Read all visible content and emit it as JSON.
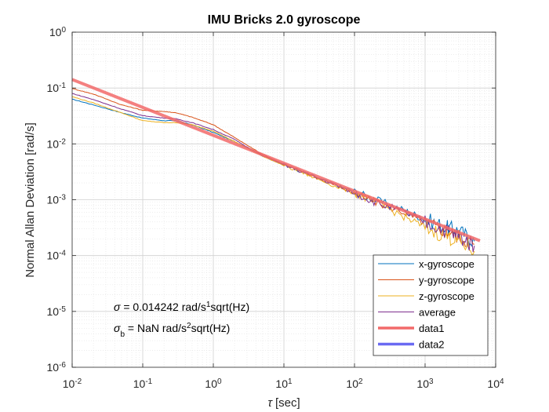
{
  "chart_data": {
    "type": "line",
    "title": "IMU Bricks 2.0 gyroscope",
    "xlabel_symbol": "τ",
    "xlabel_unit": "[sec]",
    "ylabel": "Normal Allan Deviation [rad/s]",
    "xscale": "log",
    "yscale": "log",
    "xlim": [
      0.01,
      10000
    ],
    "ylim": [
      1e-06,
      1
    ],
    "grid": "on (major and minor)",
    "legend_position": "bottom-right",
    "x_ticks": [
      {
        "value": 0.01,
        "base": "10",
        "exp": "-2"
      },
      {
        "value": 0.1,
        "base": "10",
        "exp": "-1"
      },
      {
        "value": 1,
        "base": "10",
        "exp": "0"
      },
      {
        "value": 10,
        "base": "10",
        "exp": "1"
      },
      {
        "value": 100,
        "base": "10",
        "exp": "2"
      },
      {
        "value": 1000,
        "base": "10",
        "exp": "3"
      },
      {
        "value": 10000,
        "base": "10",
        "exp": "4"
      }
    ],
    "y_ticks": [
      {
        "value": 1e-06,
        "base": "10",
        "exp": "-6"
      },
      {
        "value": 1e-05,
        "base": "10",
        "exp": "-5"
      },
      {
        "value": 0.0001,
        "base": "10",
        "exp": "-4"
      },
      {
        "value": 0.001,
        "base": "10",
        "exp": "-3"
      },
      {
        "value": 0.01,
        "base": "10",
        "exp": "-2"
      },
      {
        "value": 0.1,
        "base": "10",
        "exp": "-1"
      },
      {
        "value": 1,
        "base": "10",
        "exp": "0"
      }
    ],
    "series": [
      {
        "name": "x-gyroscope",
        "color": "#0072BD",
        "width": 1,
        "x": [
          0.01,
          0.02,
          0.05,
          0.1,
          0.2,
          0.3,
          0.5,
          1,
          2,
          3,
          5,
          10,
          20,
          50,
          100,
          200,
          500,
          1000,
          2000,
          3000,
          5000
        ],
        "y": [
          0.063,
          0.05,
          0.036,
          0.029,
          0.026,
          0.026,
          0.022,
          0.016,
          0.011,
          0.0085,
          0.006,
          0.0042,
          0.003,
          0.0019,
          0.0014,
          0.001,
          0.00065,
          0.00045,
          0.00032,
          0.00028,
          0.00018
        ]
      },
      {
        "name": "y-gyroscope",
        "color": "#D95319",
        "width": 1,
        "x": [
          0.01,
          0.02,
          0.05,
          0.1,
          0.2,
          0.3,
          0.5,
          1,
          2,
          3,
          5,
          10,
          20,
          50,
          100,
          200,
          500,
          1000,
          2000,
          3000,
          5000
        ],
        "y": [
          0.098,
          0.078,
          0.05,
          0.04,
          0.038,
          0.036,
          0.03,
          0.022,
          0.013,
          0.0095,
          0.0065,
          0.0043,
          0.003,
          0.0019,
          0.0013,
          0.0009,
          0.0006,
          0.00038,
          0.00028,
          0.00022,
          0.00016
        ]
      },
      {
        "name": "z-gyroscope",
        "color": "#EDB120",
        "width": 1,
        "x": [
          0.01,
          0.02,
          0.05,
          0.1,
          0.2,
          0.3,
          0.5,
          1,
          2,
          3,
          5,
          10,
          20,
          50,
          100,
          200,
          500,
          1000,
          2000,
          3000,
          5000
        ],
        "y": [
          0.07,
          0.054,
          0.036,
          0.026,
          0.024,
          0.024,
          0.022,
          0.017,
          0.011,
          0.0085,
          0.006,
          0.0041,
          0.0029,
          0.0018,
          0.0013,
          0.0009,
          0.0005,
          0.00032,
          0.00022,
          0.00018,
          0.00012
        ]
      },
      {
        "name": "average",
        "color": "#7E2F8E",
        "width": 1,
        "x": [
          0.01,
          0.02,
          0.05,
          0.1,
          0.2,
          0.3,
          0.5,
          1,
          2,
          3,
          5,
          10,
          20,
          50,
          100,
          200,
          500,
          1000,
          2000,
          3000,
          5000
        ],
        "y": [
          0.08,
          0.062,
          0.042,
          0.032,
          0.029,
          0.028,
          0.024,
          0.018,
          0.012,
          0.0088,
          0.0062,
          0.0042,
          0.003,
          0.0019,
          0.0013,
          0.0009,
          0.0006,
          0.0004,
          0.00028,
          0.00022,
          0.00015
        ]
      },
      {
        "name": "data1",
        "color": "#F26A6A",
        "width": 4,
        "x": [
          0.01,
          6000
        ],
        "y": [
          0.142,
          0.000184
        ]
      },
      {
        "name": "data2",
        "color": "#6A6AF2",
        "width": 4,
        "x": [],
        "y": []
      }
    ],
    "annotations": [
      {
        "symbol": "σ",
        "subscript": "",
        "text_before_sup": " = 0.014242 rad/s",
        "sup": "1",
        "text_after_sup": "sqrt(Hz)"
      },
      {
        "symbol": "σ",
        "subscript": "b",
        "text_before_sup": " = NaN rad/s",
        "sup": "2",
        "text_after_sup": "sqrt(Hz)"
      }
    ]
  }
}
